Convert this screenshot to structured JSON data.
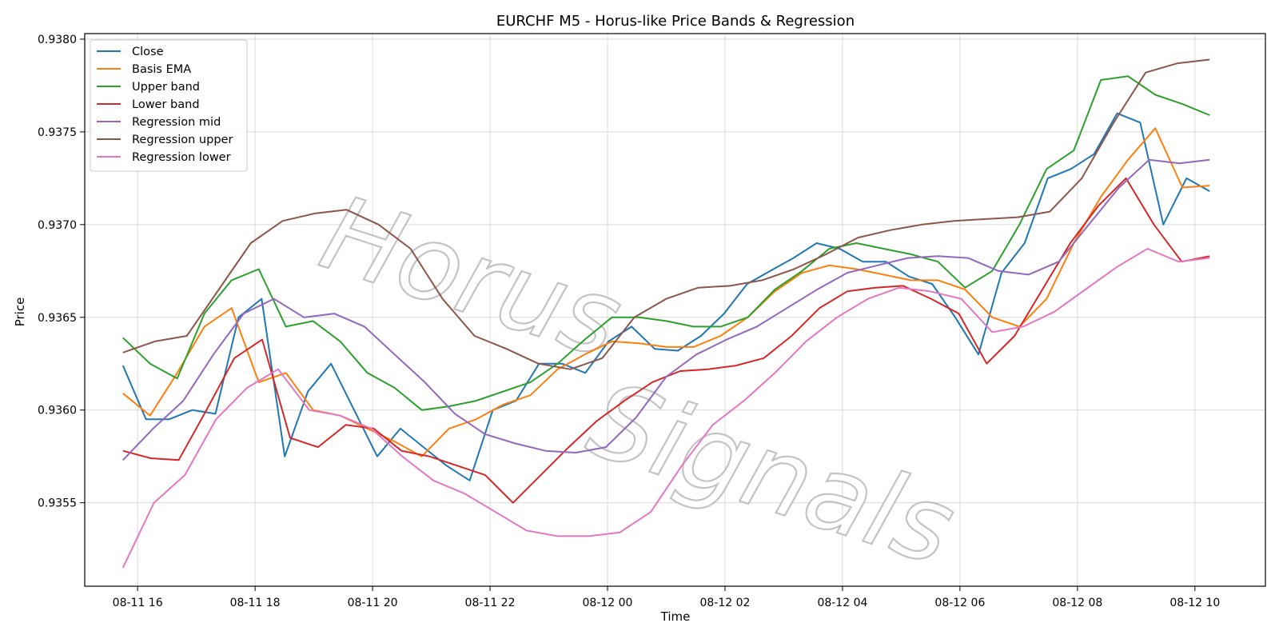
{
  "chart_data": {
    "type": "line",
    "title": "EURCHF M5 - Horus-like Price Bands & Regression",
    "xlabel": "Time",
    "ylabel": "Price",
    "watermark": "Horus Signals",
    "x_start": "2025-08-11 15:45",
    "x_interval_minutes": 60,
    "x_ticks": [
      "08-11 16",
      "08-11 18",
      "08-11 20",
      "08-11 22",
      "08-12 00",
      "08-12 02",
      "08-12 04",
      "08-12 06",
      "08-12 08",
      "08-12 10"
    ],
    "y_ticks": [
      "0.9355",
      "0.9360",
      "0.9365",
      "0.9370",
      "0.9375",
      "0.9380"
    ],
    "ylim": [
      0.93505,
      0.93803
    ],
    "xlim_hours": [
      -0.9,
      19.2
    ],
    "grid": true,
    "legend_position": "upper-left",
    "series": [
      {
        "name": "Close",
        "color": "#1f77b4",
        "values": [
          0.93624,
          0.93595,
          0.93595,
          0.936,
          0.93598,
          0.9365,
          0.9366,
          0.93575,
          0.9361,
          0.93625,
          0.936,
          0.93575,
          0.9359,
          0.9358,
          0.9357,
          0.93562,
          0.936,
          0.93605,
          0.93625,
          0.93625,
          0.9362,
          0.93637,
          0.93645,
          0.93633,
          0.93632,
          0.9364,
          0.93652,
          0.93668,
          0.93675,
          0.93682,
          0.9369,
          0.93687,
          0.9368,
          0.9368,
          0.93672,
          0.93668,
          0.9365,
          0.9363,
          0.93674,
          0.9369,
          0.93725,
          0.9373,
          0.93738,
          0.9376,
          0.93755,
          0.937,
          0.93725,
          0.93718
        ]
      },
      {
        "name": "Basis EMA",
        "color": "#ff7f0e",
        "values": [
          0.93609,
          0.93597,
          0.9362,
          0.93645,
          0.93655,
          0.93615,
          0.9362,
          0.936,
          0.93597,
          0.9359,
          0.93583,
          0.93575,
          0.9359,
          0.93595,
          0.93603,
          0.93608,
          0.93622,
          0.9363,
          0.93637,
          0.93636,
          0.93634,
          0.93634,
          0.9364,
          0.9365,
          0.93664,
          0.93674,
          0.93678,
          0.93676,
          0.93673,
          0.9367,
          0.9367,
          0.93665,
          0.9365,
          0.93645,
          0.9366,
          0.9369,
          0.93715,
          0.93735,
          0.93752,
          0.9372,
          0.93721
        ]
      },
      {
        "name": "Upper band",
        "color": "#2ca02c",
        "values": [
          0.93639,
          0.93625,
          0.93617,
          0.93652,
          0.9367,
          0.93676,
          0.93645,
          0.93648,
          0.93637,
          0.9362,
          0.93612,
          0.936,
          0.93602,
          0.93605,
          0.9361,
          0.93615,
          0.93625,
          0.93638,
          0.9365,
          0.9365,
          0.93648,
          0.93645,
          0.93645,
          0.9365,
          0.93665,
          0.93675,
          0.93687,
          0.9369,
          0.93687,
          0.93684,
          0.9368,
          0.93666,
          0.93675,
          0.937,
          0.9373,
          0.9374,
          0.93778,
          0.9378,
          0.9377,
          0.93765,
          0.93759
        ]
      },
      {
        "name": "Lower band",
        "color": "#d62728",
        "values": [
          0.93578,
          0.93574,
          0.93573,
          0.936,
          0.93628,
          0.93638,
          0.93585,
          0.9358,
          0.93592,
          0.9359,
          0.93578,
          0.93575,
          0.9357,
          0.93565,
          0.9355,
          0.93565,
          0.9358,
          0.93594,
          0.93605,
          0.93615,
          0.93621,
          0.93622,
          0.93624,
          0.93628,
          0.9364,
          0.93655,
          0.93664,
          0.93666,
          0.93667,
          0.9366,
          0.93652,
          0.93625,
          0.9364,
          0.93665,
          0.9369,
          0.9371,
          0.93725,
          0.937,
          0.9368,
          0.93683
        ]
      },
      {
        "name": "Regression mid",
        "color": "#9467bd",
        "values": [
          0.93573,
          0.9359,
          0.93605,
          0.9363,
          0.93652,
          0.9366,
          0.9365,
          0.93652,
          0.93645,
          0.9363,
          0.93615,
          0.93598,
          0.93587,
          0.93582,
          0.93578,
          0.93577,
          0.9358,
          0.93596,
          0.93618,
          0.9363,
          0.93638,
          0.93645,
          0.93655,
          0.93665,
          0.93674,
          0.93678,
          0.93682,
          0.93683,
          0.93682,
          0.93675,
          0.93673,
          0.9368,
          0.937,
          0.9372,
          0.93735,
          0.93733,
          0.93735
        ]
      },
      {
        "name": "Regression upper",
        "color": "#8c564b",
        "values": [
          0.93631,
          0.93637,
          0.9364,
          0.93665,
          0.9369,
          0.93702,
          0.93706,
          0.93708,
          0.937,
          0.93687,
          0.9366,
          0.9364,
          0.93633,
          0.93625,
          0.93622,
          0.93628,
          0.9365,
          0.9366,
          0.93666,
          0.93667,
          0.9367,
          0.93676,
          0.93684,
          0.93693,
          0.93697,
          0.937,
          0.93702,
          0.93703,
          0.93704,
          0.93707,
          0.93725,
          0.93755,
          0.93782,
          0.93787,
          0.93789
        ]
      },
      {
        "name": "Regression lower",
        "color": "#e377c2",
        "values": [
          0.93515,
          0.9355,
          0.93565,
          0.93595,
          0.93612,
          0.93622,
          0.936,
          0.93597,
          0.9359,
          0.93575,
          0.93562,
          0.93555,
          0.93545,
          0.93535,
          0.93532,
          0.93532,
          0.93534,
          0.93545,
          0.9357,
          0.93592,
          0.93605,
          0.9362,
          0.93637,
          0.9365,
          0.9366,
          0.93666,
          0.93664,
          0.9366,
          0.93642,
          0.93645,
          0.93653,
          0.93665,
          0.93677,
          0.93687,
          0.9368,
          0.93682
        ]
      }
    ]
  }
}
